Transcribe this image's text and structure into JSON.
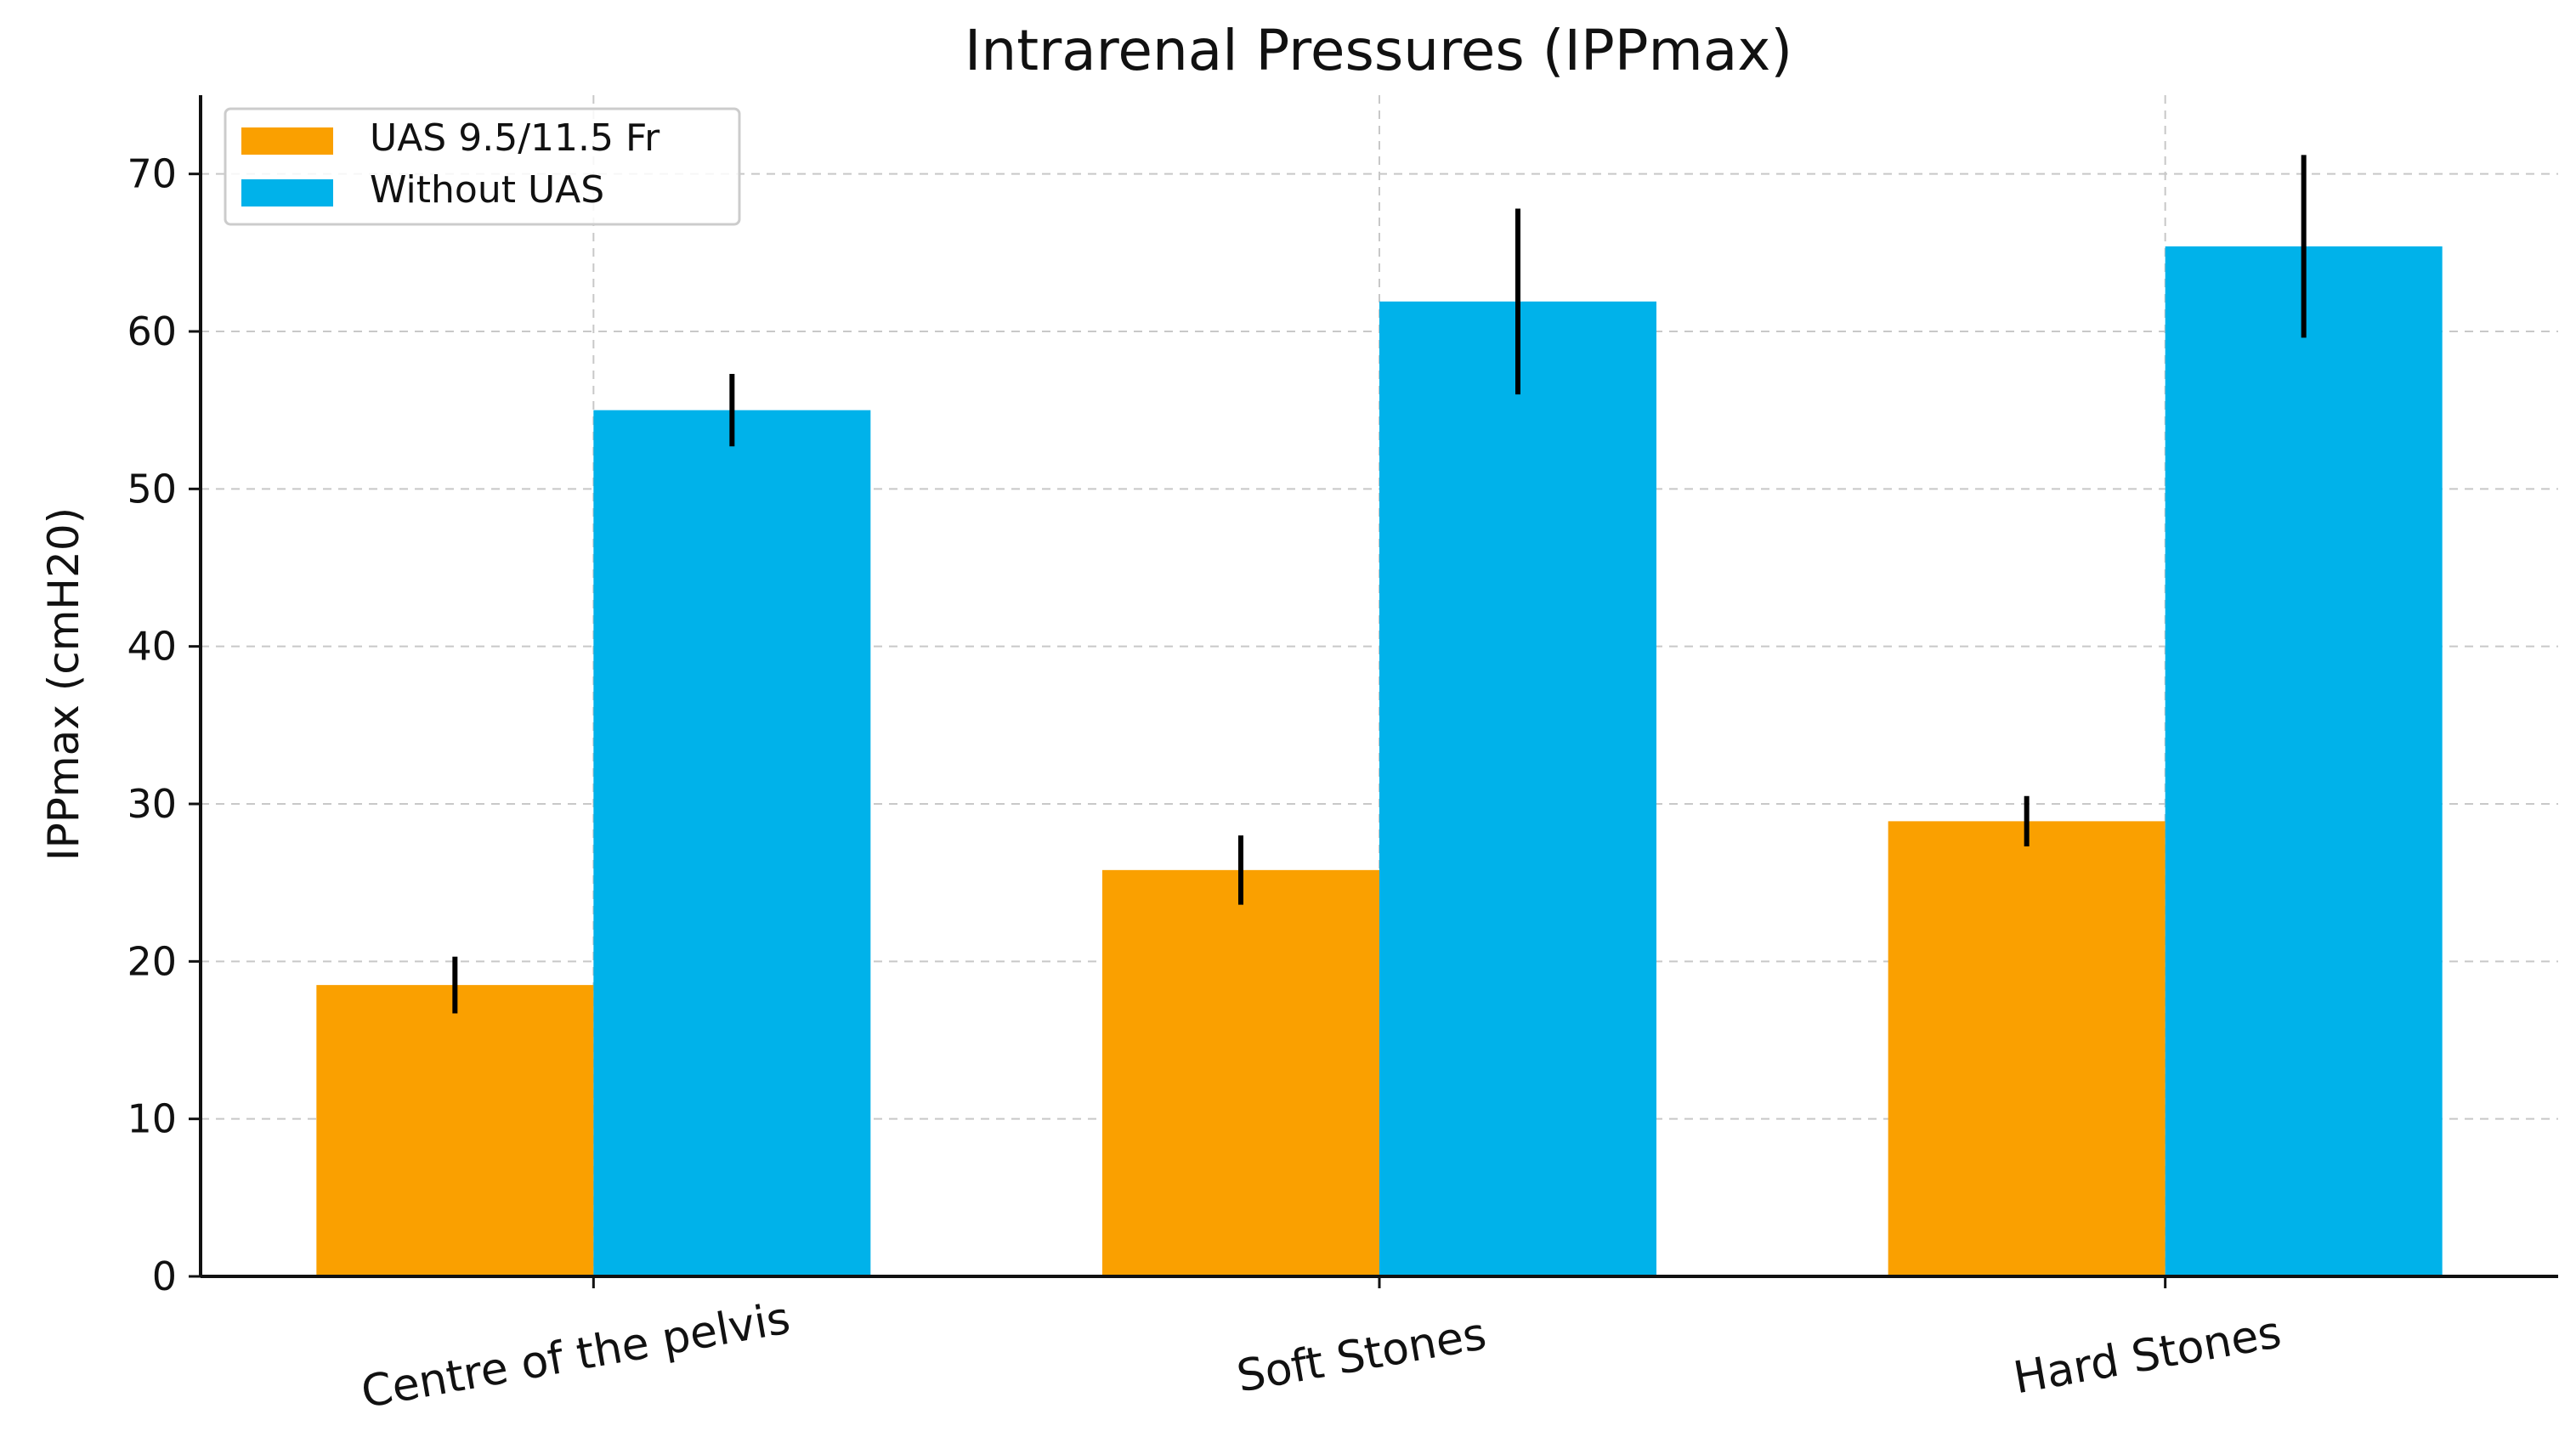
{
  "chart_data": {
    "type": "bar",
    "title": "Intrarenal Pressures (IPPmax)",
    "xlabel": "",
    "ylabel": "IPPmax (cmH20)",
    "ylim": [
      0,
      75
    ],
    "yticks": [
      0,
      10,
      20,
      30,
      40,
      50,
      60,
      70
    ],
    "grid": true,
    "legend_position": "top-left",
    "categories": [
      "Centre of the pelvis",
      "Soft Stones",
      "Hard Stones"
    ],
    "series": [
      {
        "name": "UAS 9.5/11.5 Fr",
        "color": "#FAA000",
        "values": [
          18.5,
          25.8,
          28.9
        ],
        "errors": [
          1.8,
          2.2,
          1.6
        ]
      },
      {
        "name": "Without UAS",
        "color": "#00B2EA",
        "values": [
          55.0,
          61.9,
          65.4
        ],
        "errors": [
          2.3,
          5.9,
          5.8
        ]
      }
    ]
  }
}
